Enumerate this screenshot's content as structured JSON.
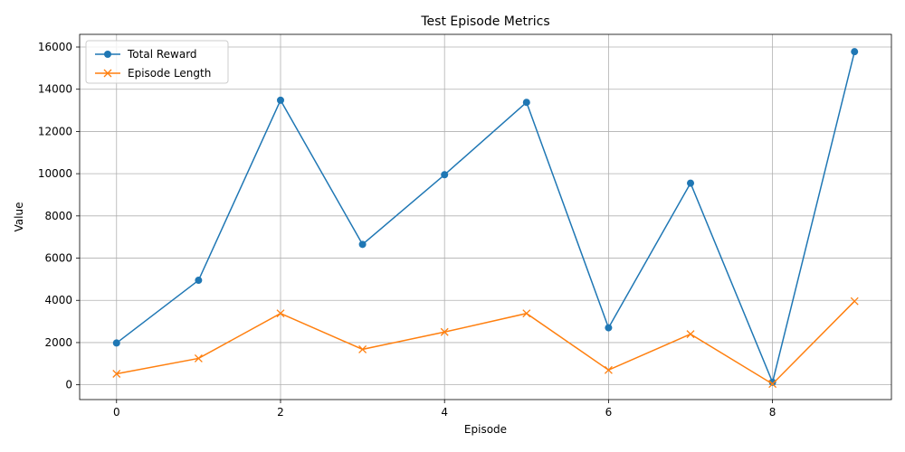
{
  "chart_data": {
    "type": "line",
    "title": "Test Episode Metrics",
    "xlabel": "Episode",
    "ylabel": "Value",
    "x": [
      0,
      1,
      2,
      3,
      4,
      5,
      6,
      7,
      8,
      9
    ],
    "xlim": [
      -0.45,
      9.45
    ],
    "ylim": [
      -700,
      16600
    ],
    "xticks": [
      0,
      2,
      4,
      6,
      8
    ],
    "yticks": [
      0,
      2000,
      4000,
      6000,
      8000,
      10000,
      12000,
      14000,
      16000
    ],
    "grid": true,
    "legend_position": "top-left",
    "series": [
      {
        "name": "Total Reward",
        "marker": "circle",
        "color": "#1f77b4",
        "values": [
          1980,
          4950,
          13480,
          6650,
          9950,
          13380,
          2700,
          9550,
          120,
          15780
        ]
      },
      {
        "name": "Episode Length",
        "marker": "x",
        "color": "#ff7f0e",
        "values": [
          520,
          1250,
          3380,
          1680,
          2500,
          3380,
          700,
          2400,
          40,
          3960
        ]
      }
    ]
  }
}
